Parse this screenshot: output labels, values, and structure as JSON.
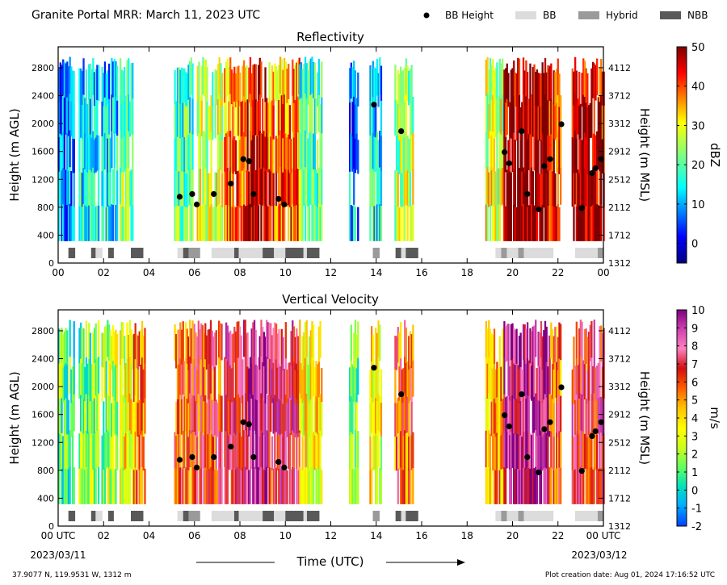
{
  "figure": {
    "title": "Granite Portal MRR:  March 11, 2023 UTC",
    "legend": [
      {
        "label": "BB Height",
        "kind": "dot",
        "color": "#000000"
      },
      {
        "label": "BB",
        "kind": "bar",
        "color": "#dcdcdc"
      },
      {
        "label": "Hybrid",
        "kind": "bar",
        "color": "#9a9a9a"
      },
      {
        "label": "NBB",
        "kind": "bar",
        "color": "#595959"
      }
    ],
    "xlabel": "Time (UTC)",
    "x_start_label": "00 UTC",
    "x_end_label": "00 UTC",
    "x_start_date": "2023/03/11",
    "x_end_date": "2023/03/12",
    "location": "37.9077 N, 119.9531 W, 1312 m",
    "creation": "Plot creation date: Aug 01, 2024 17:16:52 UTC"
  },
  "chart_data": [
    {
      "type": "heatmap",
      "title": "Reflectivity",
      "xlabel": "Time (UTC)",
      "ylabel": "Height (m AGL)",
      "ylabel_right": "Height (m MSL)",
      "xlim": [
        0,
        24
      ],
      "ylim": [
        0,
        3100
      ],
      "xticks": [
        "00",
        "02",
        "04",
        "06",
        "08",
        "10",
        "12",
        "14",
        "16",
        "18",
        "20",
        "22",
        "00"
      ],
      "yticks": [
        0,
        400,
        800,
        1200,
        1600,
        2000,
        2400,
        2800
      ],
      "yticks_right": [
        1312,
        1712,
        2112,
        2512,
        2912,
        3312,
        3712,
        4112
      ],
      "colorbar": {
        "label": "dBZ",
        "min": -5,
        "max": 50,
        "ticks": [
          0,
          10,
          20,
          30,
          40,
          50
        ]
      },
      "precip_segments": [
        {
          "start": 0.0,
          "end": 0.7,
          "level": 0.2
        },
        {
          "start": 0.9,
          "end": 1.8,
          "level": 0.3
        },
        {
          "start": 1.9,
          "end": 2.6,
          "level": 0.3
        },
        {
          "start": 2.7,
          "end": 3.3,
          "level": 0.45
        },
        {
          "start": 5.1,
          "end": 5.9,
          "level": 0.4
        },
        {
          "start": 6.1,
          "end": 7.2,
          "level": 0.55
        },
        {
          "start": 7.3,
          "end": 8.3,
          "level": 0.75
        },
        {
          "start": 8.3,
          "end": 9.2,
          "level": 0.9
        },
        {
          "start": 9.2,
          "end": 10.6,
          "level": 0.75
        },
        {
          "start": 10.6,
          "end": 11.6,
          "level": 0.4
        },
        {
          "start": 12.8,
          "end": 13.2,
          "level": 0.2
        },
        {
          "start": 13.7,
          "end": 14.2,
          "level": 0.3
        },
        {
          "start": 14.8,
          "end": 15.6,
          "level": 0.5
        },
        {
          "start": 18.8,
          "end": 19.6,
          "level": 0.55
        },
        {
          "start": 19.6,
          "end": 21.6,
          "level": 0.95
        },
        {
          "start": 21.6,
          "end": 22.1,
          "level": 0.8
        },
        {
          "start": 22.6,
          "end": 24.0,
          "level": 0.9
        }
      ],
      "bb_height": {
        "x": [
          5.35,
          5.9,
          6.1,
          6.85,
          7.6,
          8.15,
          8.4,
          8.6,
          9.7,
          9.95,
          13.9,
          15.1,
          19.65,
          19.85,
          20.4,
          20.65,
          21.15,
          21.4,
          21.65,
          22.15,
          23.05,
          23.5,
          23.65,
          23.9
        ],
        "y": [
          950,
          990,
          840,
          990,
          1140,
          1490,
          1460,
          990,
          920,
          840,
          2270,
          1890,
          1590,
          1430,
          1890,
          990,
          770,
          1390,
          1490,
          1990,
          790,
          1290,
          1360,
          1490
        ]
      },
      "bb_type_bars": [
        {
          "start": 0.45,
          "end": 0.75,
          "type": "NBB"
        },
        {
          "start": 1.45,
          "end": 1.65,
          "type": "NBB"
        },
        {
          "start": 1.65,
          "end": 1.95,
          "type": "BB"
        },
        {
          "start": 2.2,
          "end": 2.45,
          "type": "NBB"
        },
        {
          "start": 3.2,
          "end": 3.75,
          "type": "NBB"
        },
        {
          "start": 5.25,
          "end": 5.5,
          "type": "BB"
        },
        {
          "start": 5.5,
          "end": 5.75,
          "type": "NBB"
        },
        {
          "start": 5.75,
          "end": 6.25,
          "type": "Hybrid"
        },
        {
          "start": 6.75,
          "end": 7.75,
          "type": "BB"
        },
        {
          "start": 7.75,
          "end": 7.95,
          "type": "NBB"
        },
        {
          "start": 7.95,
          "end": 9.0,
          "type": "BB"
        },
        {
          "start": 9.0,
          "end": 9.5,
          "type": "NBB"
        },
        {
          "start": 9.5,
          "end": 10.0,
          "type": "BB"
        },
        {
          "start": 10.0,
          "end": 10.8,
          "type": "NBB"
        },
        {
          "start": 10.8,
          "end": 10.95,
          "type": "BB"
        },
        {
          "start": 10.95,
          "end": 11.5,
          "type": "NBB"
        },
        {
          "start": 13.85,
          "end": 14.15,
          "type": "Hybrid"
        },
        {
          "start": 14.85,
          "end": 15.1,
          "type": "NBB"
        },
        {
          "start": 15.1,
          "end": 15.3,
          "type": "BB"
        },
        {
          "start": 15.3,
          "end": 15.85,
          "type": "NBB"
        },
        {
          "start": 19.25,
          "end": 19.5,
          "type": "BB"
        },
        {
          "start": 19.5,
          "end": 19.75,
          "type": "Hybrid"
        },
        {
          "start": 19.75,
          "end": 20.25,
          "type": "BB"
        },
        {
          "start": 20.25,
          "end": 20.5,
          "type": "Hybrid"
        },
        {
          "start": 20.5,
          "end": 21.8,
          "type": "BB"
        },
        {
          "start": 22.75,
          "end": 23.75,
          "type": "BB"
        },
        {
          "start": 23.75,
          "end": 24.0,
          "type": "Hybrid"
        }
      ]
    },
    {
      "type": "heatmap",
      "title": "Vertical Velocity",
      "xlabel": "Time (UTC)",
      "ylabel": "Height (m AGL)",
      "ylabel_right": "Height (m MSL)",
      "xlim": [
        0,
        24
      ],
      "ylim": [
        0,
        3100
      ],
      "xticks": [
        "00 UTC",
        "02",
        "04",
        "06",
        "08",
        "10",
        "12",
        "14",
        "16",
        "18",
        "20",
        "22",
        "00 UTC"
      ],
      "yticks": [
        0,
        400,
        800,
        1200,
        1600,
        2000,
        2400,
        2800
      ],
      "yticks_right": [
        1312,
        1712,
        2112,
        2512,
        2912,
        3312,
        3712,
        4112
      ],
      "colorbar": {
        "label": "m/s",
        "min": -2,
        "max": 10,
        "ticks": [
          -2,
          -1,
          0,
          1,
          2,
          3,
          4,
          5,
          6,
          7,
          8,
          9,
          10
        ]
      },
      "precip_segments": [
        {
          "start": 0.0,
          "end": 0.7,
          "level": 0.25
        },
        {
          "start": 0.9,
          "end": 1.8,
          "level": 0.3
        },
        {
          "start": 1.9,
          "end": 2.6,
          "level": 0.35
        },
        {
          "start": 2.7,
          "end": 3.3,
          "level": 0.45
        },
        {
          "start": 3.3,
          "end": 3.8,
          "level": 0.6
        },
        {
          "start": 5.1,
          "end": 5.9,
          "level": 0.65
        },
        {
          "start": 5.9,
          "end": 7.2,
          "level": 0.7
        },
        {
          "start": 7.3,
          "end": 8.3,
          "level": 0.8
        },
        {
          "start": 8.3,
          "end": 9.2,
          "level": 0.9
        },
        {
          "start": 9.2,
          "end": 10.6,
          "level": 0.8
        },
        {
          "start": 10.6,
          "end": 11.6,
          "level": 0.45
        },
        {
          "start": 12.8,
          "end": 13.2,
          "level": 0.3
        },
        {
          "start": 13.7,
          "end": 14.2,
          "level": 0.45
        },
        {
          "start": 14.8,
          "end": 15.6,
          "level": 0.65
        },
        {
          "start": 18.8,
          "end": 19.6,
          "level": 0.55
        },
        {
          "start": 19.6,
          "end": 21.6,
          "level": 0.9
        },
        {
          "start": 21.6,
          "end": 22.1,
          "level": 0.65
        },
        {
          "start": 22.6,
          "end": 24.0,
          "level": 0.75
        }
      ],
      "bb_height": {
        "x": [
          5.35,
          5.9,
          6.1,
          6.85,
          7.6,
          8.15,
          8.4,
          8.6,
          9.7,
          9.95,
          13.9,
          15.1,
          19.65,
          19.85,
          20.4,
          20.65,
          21.15,
          21.4,
          21.65,
          22.15,
          23.05,
          23.5,
          23.65,
          23.9
        ],
        "y": [
          950,
          990,
          840,
          990,
          1140,
          1490,
          1460,
          990,
          920,
          840,
          2270,
          1890,
          1590,
          1430,
          1890,
          990,
          770,
          1390,
          1490,
          1990,
          790,
          1290,
          1360,
          1490
        ]
      },
      "bb_type_bars": [
        {
          "start": 0.45,
          "end": 0.75,
          "type": "NBB"
        },
        {
          "start": 1.45,
          "end": 1.65,
          "type": "NBB"
        },
        {
          "start": 1.65,
          "end": 1.95,
          "type": "BB"
        },
        {
          "start": 2.2,
          "end": 2.45,
          "type": "NBB"
        },
        {
          "start": 3.2,
          "end": 3.75,
          "type": "NBB"
        },
        {
          "start": 5.25,
          "end": 5.5,
          "type": "BB"
        },
        {
          "start": 5.5,
          "end": 5.75,
          "type": "NBB"
        },
        {
          "start": 5.75,
          "end": 6.25,
          "type": "Hybrid"
        },
        {
          "start": 6.75,
          "end": 7.75,
          "type": "BB"
        },
        {
          "start": 7.75,
          "end": 7.95,
          "type": "NBB"
        },
        {
          "start": 7.95,
          "end": 9.0,
          "type": "BB"
        },
        {
          "start": 9.0,
          "end": 9.5,
          "type": "NBB"
        },
        {
          "start": 9.5,
          "end": 10.0,
          "type": "BB"
        },
        {
          "start": 10.0,
          "end": 10.8,
          "type": "NBB"
        },
        {
          "start": 10.8,
          "end": 10.95,
          "type": "BB"
        },
        {
          "start": 10.95,
          "end": 11.5,
          "type": "NBB"
        },
        {
          "start": 13.85,
          "end": 14.15,
          "type": "Hybrid"
        },
        {
          "start": 14.85,
          "end": 15.1,
          "type": "NBB"
        },
        {
          "start": 15.1,
          "end": 15.3,
          "type": "BB"
        },
        {
          "start": 15.3,
          "end": 15.85,
          "type": "NBB"
        },
        {
          "start": 19.25,
          "end": 19.5,
          "type": "BB"
        },
        {
          "start": 19.5,
          "end": 19.75,
          "type": "Hybrid"
        },
        {
          "start": 19.75,
          "end": 20.25,
          "type": "BB"
        },
        {
          "start": 20.25,
          "end": 20.5,
          "type": "Hybrid"
        },
        {
          "start": 20.5,
          "end": 21.8,
          "type": "BB"
        },
        {
          "start": 22.75,
          "end": 23.75,
          "type": "BB"
        },
        {
          "start": 23.75,
          "end": 24.0,
          "type": "Hybrid"
        }
      ]
    }
  ]
}
